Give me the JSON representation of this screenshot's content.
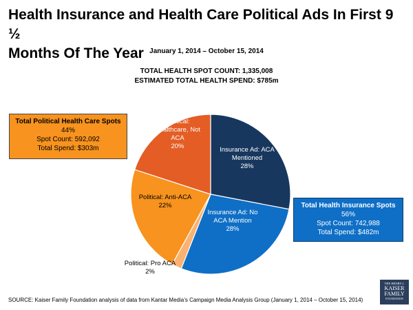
{
  "header": {
    "title_line1": "Health Insurance and Health Care Political Ads In First 9 ½",
    "title_line2": "Months Of The Year",
    "date_range": "January 1, 2014 – October 15, 2014",
    "total_count": "TOTAL HEALTH SPOT COUNT: 1,335,008",
    "total_spend": "ESTIMATED TOTAL HEALTH SPEND: $785m"
  },
  "callouts": {
    "political": {
      "title": "Total Political Health Care Spots",
      "percent": "44%",
      "spot_count": "Spot Count: 592,092",
      "spend": "Total Spend: $303m",
      "bg_color": "#f7931e"
    },
    "insurance": {
      "title": "Total Health Insurance Spots",
      "percent": "56%",
      "spot_count": "Spot Count: 742,988",
      "spend": "Total Spend: $482m",
      "bg_color": "#0f6fc6"
    }
  },
  "chart_data": {
    "type": "pie",
    "slices": [
      {
        "name": "Insurance Ad: ACA Mentioned",
        "label_lines": [
          "Insurance Ad: ACA",
          "Mentioned",
          "28%"
        ],
        "value": 28,
        "color": "#17375e",
        "text_color": "#ffffff"
      },
      {
        "name": "Insurance Ad: No ACA Mention",
        "label_lines": [
          "Insurance Ad: No",
          "ACA Mention",
          "28%"
        ],
        "value": 28,
        "color": "#0f6fc6",
        "text_color": "#ffffff"
      },
      {
        "name": "Political: Pro ACA",
        "label_lines": [
          "Political: Pro ACA",
          "2%"
        ],
        "value": 2,
        "color": "#fbb171",
        "text_color": "#000000"
      },
      {
        "name": "Political: Anti-ACA",
        "label_lines": [
          "Political: Anti-ACA",
          "22%"
        ],
        "value": 22,
        "color": "#f7931e",
        "text_color": "#000000"
      },
      {
        "name": "Political: Healthcare, Not ACA",
        "label_lines": [
          "Political:",
          "Healthcare, Not",
          "ACA",
          "20%"
        ],
        "value": 20,
        "color": "#e35d25",
        "text_color": "#ffffff"
      }
    ],
    "start_angle_deg": 0,
    "direction": "clockwise"
  },
  "footer": {
    "source": "SOURCE: Kaiser Family Foundation analysis of data from Kantar Media’s Campaign Media Analysis Group (January 1, 2014 – October 15, 2014)",
    "logo_line1": "THE HENRY J.",
    "logo_line2": "KAISER",
    "logo_line3": "FAMILY",
    "logo_line4": "FOUNDATION"
  }
}
